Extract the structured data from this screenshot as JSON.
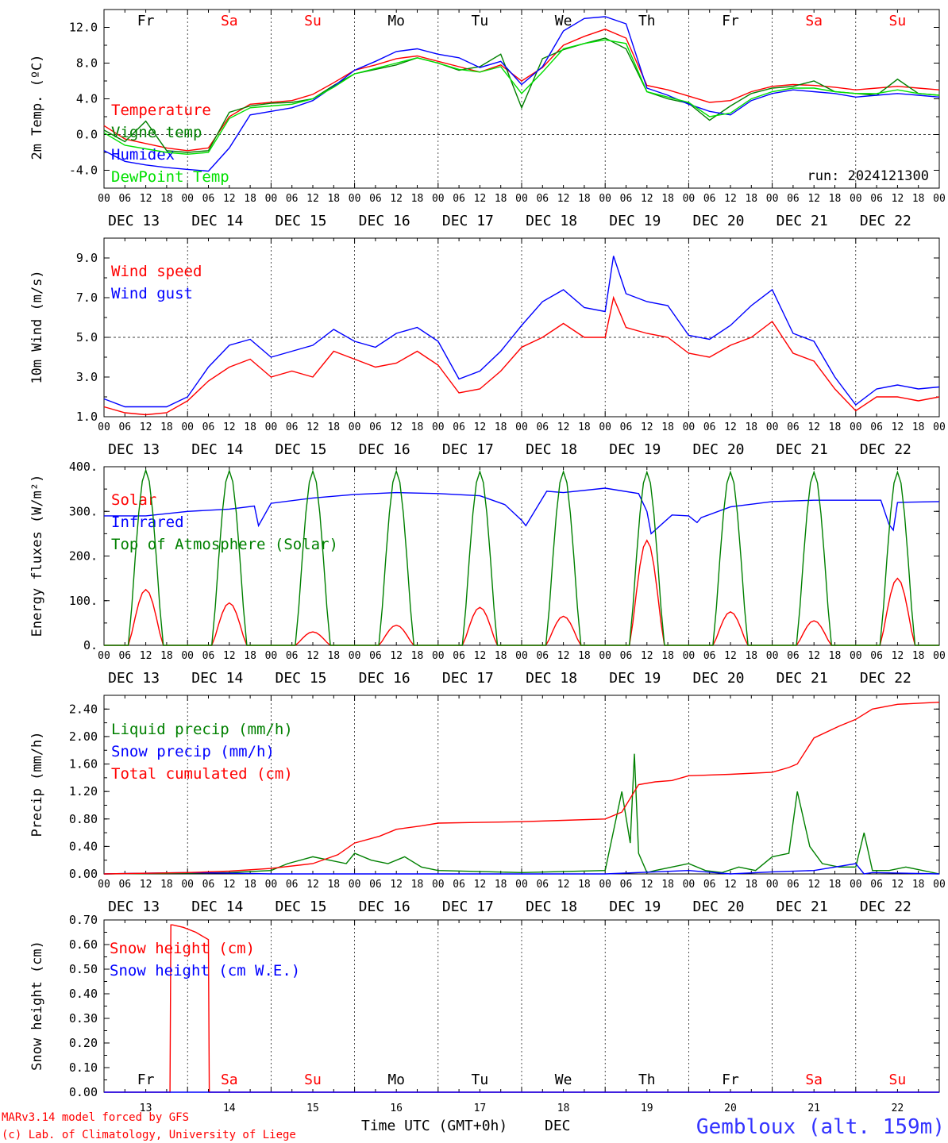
{
  "footer": {
    "credit_line1": "MARv3.14 model forced by GFS",
    "credit_line2": "(c) Lab. of Climatology, University of Liege",
    "time_label": "Time UTC (GMT+0h)",
    "month_label": "DEC",
    "location": "Gembloux (alt. 159m)"
  },
  "colors": {
    "red": "#ff0000",
    "blue": "#0000ff",
    "green": "#008000",
    "lightgreen": "#00e000",
    "weekend": "#ff0000",
    "weekday": "#000000"
  },
  "axis_common": {
    "hour_labels": [
      "00",
      "06",
      "12",
      "18"
    ],
    "final_hour": "00",
    "date_labels": [
      "DEC 13",
      "DEC 14",
      "DEC 15",
      "DEC 16",
      "DEC 17",
      "DEC 18",
      "DEC 19",
      "DEC 20",
      "DEC 21",
      "DEC 22"
    ],
    "weekdays": [
      "Fr",
      "Sa",
      "Su",
      "Mo",
      "Tu",
      "We",
      "Th",
      "Fr",
      "Sa",
      "Su"
    ],
    "weekend_flags": [
      false,
      true,
      true,
      false,
      false,
      false,
      false,
      false,
      true,
      true
    ],
    "bottom_day_numbers": [
      "13",
      "14",
      "15",
      "16",
      "17",
      "18",
      "19",
      "20",
      "21",
      "22"
    ],
    "x_range_days": [
      13,
      23
    ]
  },
  "chart_data": [
    {
      "type": "line",
      "ylabel": "2m Temp. (ºC)",
      "ylim": [
        -6,
        14
      ],
      "yticks": [
        "-4.0",
        "0.0",
        "4.0",
        "8.0",
        "12.0"
      ],
      "ytick_values": [
        -4,
        0,
        4,
        8,
        12
      ],
      "dashed_y": [
        0
      ],
      "annotation": "run: 2024121300",
      "series": [
        {
          "name": "Temperature",
          "color": "red",
          "x": [
            13.0,
            13.25,
            13.5,
            13.75,
            14.0,
            14.25,
            14.5,
            14.75,
            15.0,
            15.25,
            15.5,
            15.75,
            16.0,
            16.25,
            16.5,
            16.75,
            17.0,
            17.25,
            17.5,
            17.75,
            18.0,
            18.25,
            18.5,
            18.75,
            19.0,
            19.25,
            19.5,
            19.75,
            20.0,
            20.25,
            20.5,
            20.75,
            21.0,
            21.25,
            21.5,
            21.75,
            22.0,
            22.25,
            22.5,
            22.75,
            23.0
          ],
          "y": [
            1.0,
            -0.5,
            -1.0,
            -1.5,
            -1.8,
            -1.5,
            2.0,
            3.4,
            3.6,
            3.8,
            4.5,
            5.8,
            7.2,
            7.8,
            8.5,
            8.8,
            8.2,
            7.6,
            7.0,
            7.8,
            6.0,
            7.5,
            10.0,
            11.0,
            11.8,
            10.8,
            5.5,
            5.0,
            4.3,
            3.6,
            3.8,
            4.8,
            5.4,
            5.6,
            5.5,
            5.3,
            5.0,
            5.2,
            5.4,
            5.2,
            5.0
          ]
        },
        {
          "name": "Vigne temp",
          "color": "green",
          "x": [
            13.0,
            13.25,
            13.5,
            13.75,
            14.0,
            14.25,
            14.5,
            14.75,
            15.0,
            15.25,
            15.5,
            15.75,
            16.0,
            16.25,
            16.5,
            16.75,
            17.0,
            17.25,
            17.5,
            17.75,
            18.0,
            18.25,
            18.5,
            18.75,
            19.0,
            19.25,
            19.5,
            19.75,
            20.0,
            20.25,
            20.5,
            20.75,
            21.0,
            21.25,
            21.5,
            21.75,
            22.0,
            22.25,
            22.5,
            22.75,
            23.0
          ],
          "y": [
            0.5,
            -0.8,
            1.5,
            -1.8,
            -2.0,
            -1.8,
            2.5,
            3.2,
            3.5,
            3.6,
            4.0,
            5.5,
            6.8,
            7.3,
            7.8,
            8.6,
            8.0,
            7.2,
            7.6,
            9.0,
            3.0,
            8.5,
            9.5,
            10.2,
            10.8,
            9.6,
            4.8,
            4.0,
            3.5,
            1.6,
            3.2,
            4.6,
            5.2,
            5.4,
            6.0,
            4.8,
            4.6,
            4.4,
            6.2,
            4.6,
            4.4
          ]
        },
        {
          "name": "Humidex",
          "color": "blue",
          "x": [
            13.0,
            13.25,
            13.5,
            13.75,
            14.0,
            14.25,
            14.5,
            14.75,
            15.0,
            15.25,
            15.5,
            15.75,
            16.0,
            16.25,
            16.5,
            16.75,
            17.0,
            17.25,
            17.5,
            17.75,
            18.0,
            18.25,
            18.5,
            18.75,
            19.0,
            19.25,
            19.5,
            19.75,
            20.0,
            20.25,
            20.5,
            20.75,
            21.0,
            21.25,
            21.5,
            21.75,
            22.0,
            22.25,
            22.5,
            22.75,
            23.0
          ],
          "y": [
            -1.8,
            -3.0,
            -3.4,
            -3.7,
            -3.9,
            -4.1,
            -1.5,
            2.2,
            2.6,
            3.0,
            3.8,
            5.4,
            7.2,
            8.2,
            9.3,
            9.6,
            9.0,
            8.6,
            7.5,
            8.2,
            5.6,
            7.6,
            11.6,
            13.0,
            13.2,
            12.4,
            5.2,
            4.4,
            3.4,
            2.6,
            2.2,
            3.8,
            4.6,
            5.0,
            4.8,
            4.6,
            4.2,
            4.4,
            4.6,
            4.4,
            4.2
          ]
        },
        {
          "name": "DewPoint Temp",
          "color": "lightgreen",
          "x": [
            13.0,
            13.25,
            13.5,
            13.75,
            14.0,
            14.25,
            14.5,
            14.75,
            15.0,
            15.25,
            15.5,
            15.75,
            16.0,
            16.25,
            16.5,
            16.75,
            17.0,
            17.25,
            17.5,
            17.75,
            18.0,
            18.25,
            18.5,
            18.75,
            19.0,
            19.25,
            19.5,
            19.75,
            20.0,
            20.25,
            20.5,
            20.75,
            21.0,
            21.25,
            21.5,
            21.75,
            22.0,
            22.25,
            22.5,
            22.75,
            23.0
          ],
          "y": [
            0.2,
            -1.2,
            -1.6,
            -2.0,
            -2.2,
            -2.0,
            1.8,
            3.0,
            3.2,
            3.4,
            4.0,
            5.3,
            6.8,
            7.4,
            8.0,
            8.6,
            8.0,
            7.3,
            7.0,
            7.6,
            4.6,
            7.0,
            9.6,
            10.2,
            10.6,
            10.2,
            4.8,
            4.2,
            3.6,
            2.0,
            2.4,
            4.0,
            4.8,
            5.2,
            5.2,
            4.8,
            4.6,
            4.6,
            5.0,
            4.6,
            4.4
          ]
        }
      ]
    },
    {
      "type": "line",
      "ylabel": "10m Wind (m/s)",
      "ylim": [
        1,
        10
      ],
      "yticks": [
        "1.0",
        "3.0",
        "5.0",
        "7.0",
        "9.0"
      ],
      "ytick_values": [
        1,
        3,
        5,
        7,
        9
      ],
      "dashed_y": [
        5
      ],
      "series": [
        {
          "name": "Wind speed",
          "color": "red",
          "x": [
            13.0,
            13.25,
            13.5,
            13.75,
            14.0,
            14.25,
            14.5,
            14.75,
            15.0,
            15.25,
            15.5,
            15.75,
            16.0,
            16.25,
            16.5,
            16.75,
            17.0,
            17.25,
            17.5,
            17.75,
            18.0,
            18.25,
            18.5,
            18.75,
            19.0,
            19.1,
            19.25,
            19.5,
            19.75,
            20.0,
            20.25,
            20.5,
            20.75,
            21.0,
            21.25,
            21.5,
            21.75,
            22.0,
            22.25,
            22.5,
            22.75,
            23.0
          ],
          "y": [
            1.5,
            1.2,
            1.1,
            1.2,
            1.8,
            2.8,
            3.5,
            3.9,
            3.0,
            3.3,
            3.0,
            4.3,
            3.9,
            3.5,
            3.7,
            4.3,
            3.6,
            2.2,
            2.4,
            3.3,
            4.5,
            5.0,
            5.7,
            5.0,
            5.0,
            7.0,
            5.5,
            5.2,
            5.0,
            4.2,
            4.0,
            4.6,
            5.0,
            5.8,
            4.2,
            3.8,
            2.4,
            1.3,
            2.0,
            2.0,
            1.8,
            2.0
          ]
        },
        {
          "name": "Wind gust",
          "color": "blue",
          "x": [
            13.0,
            13.25,
            13.5,
            13.75,
            14.0,
            14.25,
            14.5,
            14.75,
            15.0,
            15.25,
            15.5,
            15.75,
            16.0,
            16.25,
            16.5,
            16.75,
            17.0,
            17.25,
            17.5,
            17.75,
            18.0,
            18.25,
            18.5,
            18.75,
            19.0,
            19.1,
            19.25,
            19.5,
            19.75,
            20.0,
            20.25,
            20.5,
            20.75,
            21.0,
            21.25,
            21.5,
            21.75,
            22.0,
            22.25,
            22.5,
            22.75,
            23.0
          ],
          "y": [
            1.9,
            1.5,
            1.5,
            1.5,
            2.0,
            3.5,
            4.6,
            4.9,
            4.0,
            4.3,
            4.6,
            5.4,
            4.8,
            4.5,
            5.2,
            5.5,
            4.8,
            2.9,
            3.3,
            4.3,
            5.6,
            6.8,
            7.4,
            6.5,
            6.3,
            9.1,
            7.2,
            6.8,
            6.6,
            5.1,
            4.9,
            5.6,
            6.6,
            7.4,
            5.2,
            4.8,
            3.0,
            1.6,
            2.4,
            2.6,
            2.4,
            2.5
          ]
        }
      ]
    },
    {
      "type": "line",
      "ylabel": "Energy fluxes (W/m²)",
      "ylim": [
        0,
        400
      ],
      "yticks": [
        "0.",
        "100.",
        "200.",
        "300.",
        "400."
      ],
      "ytick_values": [
        0,
        100,
        200,
        300,
        400
      ],
      "dashed_y": [],
      "diurnal": {
        "rise": 0.29,
        "set": 0.71,
        "peak_time": 0.5
      },
      "series": [
        {
          "name": "Solar",
          "color": "red",
          "diurnal_peaks": [
            125,
            95,
            30,
            45,
            85,
            65,
            235,
            75,
            55,
            150
          ]
        },
        {
          "name": "Infrared",
          "color": "blue",
          "x": [
            13.0,
            13.5,
            14.0,
            14.5,
            14.8,
            14.85,
            15.0,
            15.5,
            16.0,
            16.5,
            17.0,
            17.5,
            17.8,
            18.0,
            18.05,
            18.3,
            18.5,
            19.0,
            19.4,
            19.5,
            19.55,
            19.8,
            20.0,
            20.1,
            20.15,
            20.5,
            21.0,
            21.5,
            22.0,
            22.3,
            22.4,
            22.45,
            22.5,
            23.0
          ],
          "y": [
            290,
            290,
            300,
            305,
            312,
            268,
            318,
            330,
            338,
            342,
            340,
            335,
            315,
            280,
            268,
            345,
            342,
            352,
            340,
            300,
            250,
            292,
            290,
            275,
            286,
            310,
            322,
            325,
            325,
            325,
            270,
            258,
            320,
            322
          ]
        },
        {
          "name": "Top of Atmosphere (Solar)",
          "color": "green",
          "diurnal_peaks": [
            392,
            391,
            390,
            390,
            389,
            389,
            388,
            388,
            388,
            388
          ]
        }
      ]
    },
    {
      "type": "line",
      "ylabel": "Precip (mm/h)",
      "ylim": [
        0,
        2.6
      ],
      "yticks": [
        "0.00",
        "0.40",
        "0.80",
        "1.20",
        "1.60",
        "2.00",
        "2.40"
      ],
      "ytick_values": [
        0,
        0.4,
        0.8,
        1.2,
        1.6,
        2.0,
        2.4
      ],
      "dashed_y": [],
      "series": [
        {
          "name": "Liquid precip (mm/h)",
          "color": "green",
          "x": [
            13.0,
            14.0,
            14.5,
            15.0,
            15.2,
            15.5,
            15.7,
            15.9,
            16.0,
            16.2,
            16.4,
            16.6,
            16.8,
            17.0,
            18.0,
            19.0,
            19.2,
            19.3,
            19.35,
            19.4,
            19.5,
            19.6,
            19.8,
            20.0,
            20.2,
            20.4,
            20.6,
            20.8,
            21.0,
            21.2,
            21.3,
            21.45,
            21.6,
            21.8,
            22.0,
            22.1,
            22.2,
            22.4,
            22.6,
            23.0
          ],
          "y": [
            0.0,
            0.01,
            0.02,
            0.05,
            0.15,
            0.25,
            0.2,
            0.15,
            0.3,
            0.2,
            0.15,
            0.25,
            0.1,
            0.05,
            0.02,
            0.05,
            1.2,
            0.45,
            1.75,
            0.3,
            0.02,
            0.05,
            0.1,
            0.15,
            0.05,
            0.02,
            0.1,
            0.05,
            0.25,
            0.3,
            1.2,
            0.4,
            0.15,
            0.1,
            0.1,
            0.6,
            0.05,
            0.05,
            0.1,
            0.0
          ]
        },
        {
          "name": "Snow precip (mm/h)",
          "color": "blue",
          "x": [
            13.0,
            13.5,
            14.0,
            14.5,
            15.0,
            16.0,
            17.0,
            18.0,
            19.0,
            20.0,
            20.5,
            21.0,
            21.5,
            22.0,
            22.1,
            22.2,
            23.0
          ],
          "y": [
            0.0,
            0.01,
            0.02,
            0.01,
            0.0,
            0.0,
            0.0,
            0.0,
            0.0,
            0.05,
            0.0,
            0.03,
            0.05,
            0.15,
            0.0,
            0.02,
            0.0
          ]
        },
        {
          "name": "Total cumulated (cm)",
          "color": "red",
          "x": [
            13.0,
            14.0,
            14.5,
            15.0,
            15.5,
            15.8,
            16.0,
            16.3,
            16.5,
            16.8,
            17.0,
            17.5,
            18.0,
            18.5,
            19.0,
            19.2,
            19.4,
            19.6,
            19.8,
            20.0,
            20.5,
            21.0,
            21.2,
            21.3,
            21.5,
            21.8,
            22.0,
            22.2,
            22.5,
            23.0
          ],
          "y": [
            0.0,
            0.02,
            0.04,
            0.08,
            0.15,
            0.28,
            0.45,
            0.55,
            0.65,
            0.7,
            0.74,
            0.75,
            0.76,
            0.78,
            0.8,
            0.9,
            1.3,
            1.34,
            1.36,
            1.43,
            1.45,
            1.48,
            1.55,
            1.6,
            1.98,
            2.15,
            2.25,
            2.4,
            2.47,
            2.5
          ]
        }
      ]
    },
    {
      "type": "line",
      "ylabel": "Snow height (cm)",
      "ylim": [
        0,
        0.7
      ],
      "yticks": [
        "0.00",
        "0.10",
        "0.20",
        "0.30",
        "0.40",
        "0.50",
        "0.60",
        "0.70"
      ],
      "ytick_values": [
        0,
        0.1,
        0.2,
        0.3,
        0.4,
        0.5,
        0.6,
        0.7
      ],
      "dashed_y": [],
      "series": [
        {
          "name": "Snow height (cm)",
          "color": "red",
          "x": [
            13.0,
            13.79,
            13.8,
            13.82,
            13.95,
            14.1,
            14.2,
            14.25,
            14.26,
            14.3,
            23.0
          ],
          "y": [
            0,
            0,
            0.68,
            0.68,
            0.67,
            0.65,
            0.63,
            0.62,
            0.0,
            0.0,
            0.0
          ]
        },
        {
          "name": "Snow height (cm W.E.)",
          "color": "blue",
          "x": [
            13.0,
            23.0
          ],
          "y": [
            0,
            0
          ]
        }
      ]
    }
  ]
}
